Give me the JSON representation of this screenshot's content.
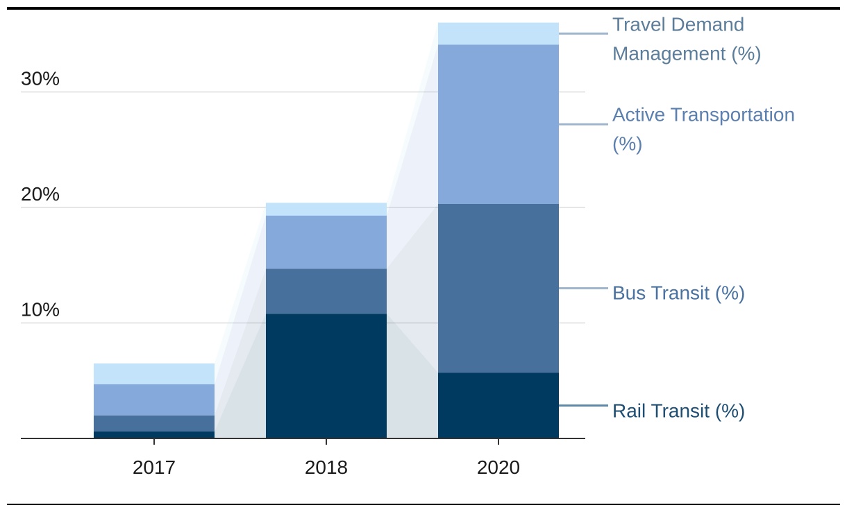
{
  "chart_data": {
    "type": "bar",
    "stacked": true,
    "categories": [
      "2017",
      "2018",
      "2020"
    ],
    "series": [
      {
        "name": "Rail Transit (%)",
        "values": [
          0.6,
          10.8,
          5.7
        ],
        "color": "#003a60",
        "label_lines": [
          "Rail Transit (%)"
        ],
        "label_color": "#1f4e73"
      },
      {
        "name": "Bus Transit (%)",
        "values": [
          1.4,
          3.9,
          14.6
        ],
        "color": "#47709c",
        "label_lines": [
          "Bus Transit (%)"
        ],
        "label_color": "#4a72a0"
      },
      {
        "name": "Active Transportation (%)",
        "values": [
          2.7,
          4.6,
          13.8
        ],
        "color": "#86a9db",
        "label_lines": [
          "Active Transportation",
          "(%)"
        ],
        "label_color": "#5b7fae"
      },
      {
        "name": "Travel Demand Management (%)",
        "values": [
          1.8,
          1.1,
          1.9
        ],
        "color": "#c3e3fb",
        "label_lines": [
          "Travel Demand",
          "Management (%)"
        ],
        "label_color": "#5c7d9a"
      }
    ],
    "y_ticks": [
      10,
      20,
      30
    ],
    "y_tick_labels": [
      "10%",
      "20%",
      "30%"
    ],
    "ylim": [
      0,
      36
    ],
    "grid": true,
    "legend": "right, direct labels",
    "title": "",
    "xlabel": "",
    "ylabel": ""
  }
}
